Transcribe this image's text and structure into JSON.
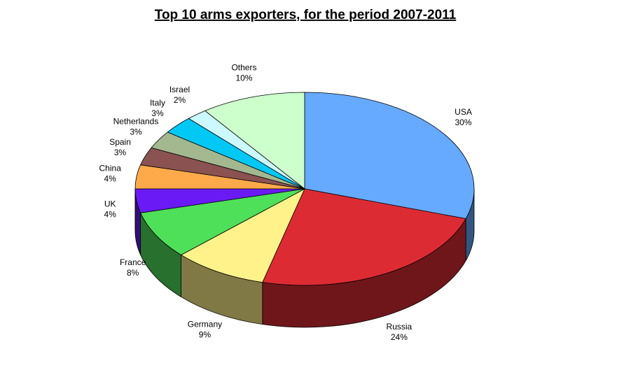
{
  "chart_data": {
    "type": "pie3d",
    "title": "Top 10 arms exporters, for the period 2007-2011",
    "categories": [
      "USA",
      "Russia",
      "Germany",
      "France",
      "UK",
      "China",
      "Spain",
      "Netherlands",
      "Italy",
      "Israel",
      "Others"
    ],
    "values": [
      30,
      24,
      9,
      8,
      4,
      4,
      3,
      3,
      3,
      2,
      10
    ],
    "value_labels": [
      "30%",
      "24%",
      "9%",
      "8%",
      "4%",
      "4%",
      "3%",
      "3%",
      "3%",
      "2%",
      "10%"
    ],
    "colors": [
      "#66aaff",
      "#dd2b33",
      "#fff28a",
      "#4fe05a",
      "#6a1af5",
      "#ffaa4a",
      "#8b5252",
      "#a3b88f",
      "#00c8f5",
      "#ccf8ff",
      "#ccffcc"
    ]
  }
}
